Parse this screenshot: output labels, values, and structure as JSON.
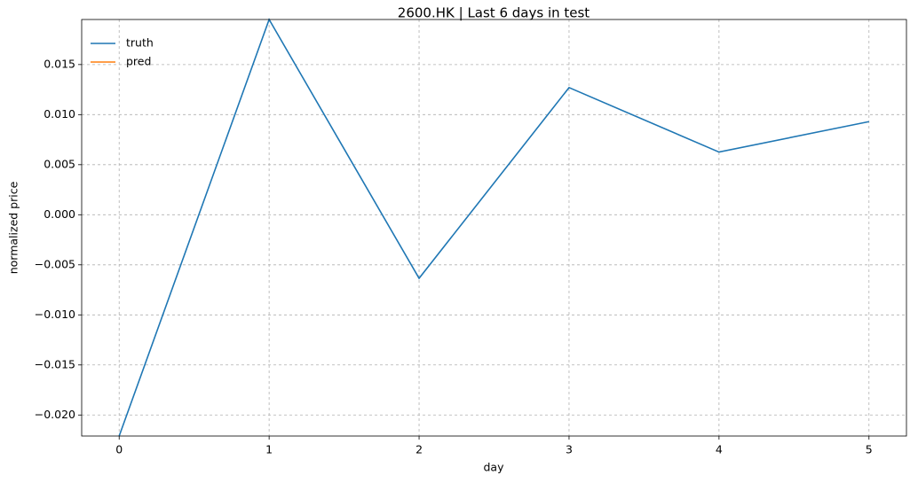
{
  "chart_data": {
    "type": "line",
    "title": "2600.HK | Last 6 days in test",
    "xlabel": "day",
    "ylabel": "normalized price",
    "x": [
      0,
      1,
      2,
      3,
      4,
      5
    ],
    "series": [
      {
        "name": "truth",
        "color": "#1f77b4",
        "values": [
          -0.0221,
          0.0195,
          -0.00635,
          0.0127,
          0.00626,
          0.0093
        ]
      },
      {
        "name": "pred",
        "color": "#ff7f0e",
        "values": [
          null,
          null,
          null,
          null,
          null,
          null
        ]
      }
    ],
    "xlim": [
      -0.25,
      5.25
    ],
    "xticks": [
      0,
      1,
      2,
      3,
      4,
      5
    ],
    "ylim": [
      -0.0221,
      0.0195
    ],
    "yticks": [
      {
        "value": -0.02,
        "label": "−0.020"
      },
      {
        "value": -0.015,
        "label": "−0.015"
      },
      {
        "value": -0.01,
        "label": "−0.010"
      },
      {
        "value": -0.005,
        "label": "−0.005"
      },
      {
        "value": 0,
        "label": "0.000"
      },
      {
        "value": 0.005,
        "label": "0.005"
      },
      {
        "value": 0.01,
        "label": "0.010"
      },
      {
        "value": 0.015,
        "label": "0.015"
      }
    ],
    "grid": true,
    "legend": "upper left"
  }
}
